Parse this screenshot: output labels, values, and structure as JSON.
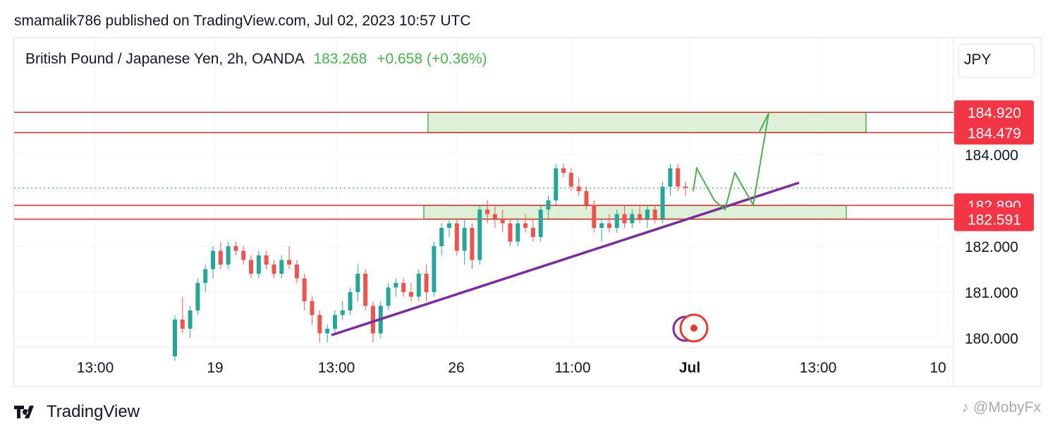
{
  "header": {
    "published_text": "smamalik786 published on TradingView.com, Jul 02, 2023 10:57 UTC"
  },
  "symbol": {
    "name": "British Pound / Japanese Yen, 2h, OANDA",
    "price": "183.268",
    "change": "+0.658 (+0.36%)"
  },
  "currency_button": "JPY",
  "footer": {
    "brand": "TradingView",
    "watermark": "@MobyFx"
  },
  "colors": {
    "up": "#26a69a",
    "down": "#ef5350",
    "level_line": "#d32f2f",
    "level_label_bg": "#f23645",
    "zone_fill": "#dff0d8",
    "zone_border": "#4caf50",
    "trendline": "#7b2d9b",
    "projection": "#4caf50",
    "grid": "#f0f3fa"
  },
  "chart_data": {
    "type": "candlestick",
    "instrument": "GBPJPY",
    "timeframe": "2h",
    "y_axis": {
      "ticks": [
        184.0,
        182.0,
        181.0,
        180.0
      ],
      "tick_labels": [
        "184.000",
        "182.000",
        "181.000",
        "180.000"
      ],
      "range": [
        179.8,
        185.5
      ]
    },
    "x_axis": {
      "tick_labels": [
        "13:00",
        "19",
        "13:00",
        "26",
        "11:00",
        "Jul",
        "13:00",
        "10"
      ]
    },
    "current_price": 183.268,
    "levels": [
      {
        "value": 184.92,
        "label": "184.920"
      },
      {
        "value": 184.479,
        "label": "184.479"
      },
      {
        "value": 182.89,
        "label": "182.890"
      },
      {
        "value": 182.591,
        "label": "182.591"
      }
    ],
    "zones": [
      {
        "from_date": "2023-06-26",
        "to_date": "2023-07-04",
        "low": 184.479,
        "high": 184.92
      },
      {
        "from_date": "2023-06-26",
        "to_date": "2023-07-04",
        "low": 182.591,
        "high": 182.89
      }
    ],
    "trendline": {
      "from": [
        "2023-06-21",
        180.1
      ],
      "to": [
        "2023-07-03",
        183.4
      ]
    },
    "projection_path": [
      183.2,
      183.7,
      183.0,
      182.8,
      183.6,
      182.9,
      184.9,
      184.5
    ],
    "candles": [
      [
        179.6,
        180.5,
        179.5,
        180.4
      ],
      [
        180.4,
        180.9,
        180.1,
        180.2
      ],
      [
        180.2,
        180.7,
        180.0,
        180.6
      ],
      [
        180.6,
        181.3,
        180.5,
        181.2
      ],
      [
        181.2,
        181.6,
        181.0,
        181.5
      ],
      [
        181.5,
        182.0,
        181.3,
        181.9
      ],
      [
        181.9,
        182.1,
        181.5,
        181.6
      ],
      [
        181.6,
        182.1,
        181.5,
        182.0
      ],
      [
        182.0,
        182.1,
        181.8,
        181.9
      ],
      [
        181.9,
        182.0,
        181.6,
        181.7
      ],
      [
        181.7,
        181.8,
        181.3,
        181.4
      ],
      [
        181.4,
        181.9,
        181.3,
        181.8
      ],
      [
        181.8,
        181.9,
        181.5,
        181.6
      ],
      [
        181.6,
        181.7,
        181.3,
        181.4
      ],
      [
        181.4,
        181.8,
        181.3,
        181.7
      ],
      [
        181.7,
        182.0,
        181.5,
        181.6
      ],
      [
        181.6,
        181.7,
        181.2,
        181.3
      ],
      [
        181.3,
        181.4,
        180.6,
        180.8
      ],
      [
        180.8,
        180.9,
        180.3,
        180.5
      ],
      [
        180.5,
        180.6,
        179.9,
        180.1
      ],
      [
        180.1,
        180.3,
        179.9,
        180.2
      ],
      [
        180.2,
        180.6,
        180.1,
        180.5
      ],
      [
        180.5,
        180.8,
        180.4,
        180.6
      ],
      [
        180.6,
        181.1,
        180.5,
        181.0
      ],
      [
        181.0,
        181.6,
        180.8,
        181.4
      ],
      [
        181.4,
        181.5,
        180.6,
        180.7
      ],
      [
        180.7,
        180.8,
        179.9,
        180.1
      ],
      [
        180.1,
        180.8,
        180.0,
        180.7
      ],
      [
        180.7,
        181.2,
        180.6,
        181.1
      ],
      [
        181.1,
        181.3,
        180.9,
        181.2
      ],
      [
        181.2,
        181.3,
        180.9,
        181.0
      ],
      [
        181.0,
        181.2,
        180.8,
        180.9
      ],
      [
        180.9,
        181.5,
        180.8,
        181.4
      ],
      [
        181.4,
        181.6,
        180.8,
        181.0
      ],
      [
        181.0,
        182.1,
        180.9,
        182.0
      ],
      [
        182.0,
        182.5,
        181.8,
        182.4
      ],
      [
        182.4,
        182.6,
        182.2,
        182.5
      ],
      [
        182.5,
        182.6,
        181.8,
        181.9
      ],
      [
        181.9,
        182.6,
        181.6,
        182.4
      ],
      [
        182.4,
        182.5,
        181.5,
        181.7
      ],
      [
        181.7,
        182.9,
        181.6,
        182.8
      ],
      [
        182.8,
        183.0,
        182.5,
        182.7
      ],
      [
        182.7,
        182.9,
        182.4,
        182.6
      ],
      [
        182.6,
        182.8,
        182.3,
        182.5
      ],
      [
        182.5,
        182.6,
        182.0,
        182.1
      ],
      [
        182.1,
        182.6,
        182.0,
        182.5
      ],
      [
        182.5,
        182.7,
        182.3,
        182.4
      ],
      [
        182.4,
        182.6,
        182.1,
        182.2
      ],
      [
        182.2,
        182.9,
        182.1,
        182.8
      ],
      [
        182.8,
        183.1,
        182.6,
        183.0
      ],
      [
        183.0,
        183.8,
        182.9,
        183.7
      ],
      [
        183.7,
        183.8,
        183.5,
        183.6
      ],
      [
        183.6,
        183.7,
        183.2,
        183.3
      ],
      [
        183.3,
        183.5,
        183.1,
        183.2
      ],
      [
        183.2,
        183.3,
        182.8,
        182.9
      ],
      [
        182.9,
        183.0,
        182.3,
        182.4
      ],
      [
        182.4,
        182.6,
        182.1,
        182.5
      ],
      [
        182.5,
        182.7,
        182.3,
        182.4
      ],
      [
        182.4,
        182.8,
        182.3,
        182.7
      ],
      [
        182.7,
        182.9,
        182.4,
        182.5
      ],
      [
        182.5,
        182.8,
        182.4,
        182.7
      ],
      [
        182.7,
        182.9,
        182.5,
        182.6
      ],
      [
        182.6,
        182.9,
        182.4,
        182.8
      ],
      [
        182.8,
        182.9,
        182.5,
        182.6
      ],
      [
        182.6,
        183.4,
        182.5,
        183.3
      ],
      [
        183.3,
        183.8,
        183.1,
        183.7
      ],
      [
        183.7,
        183.8,
        183.2,
        183.3
      ],
      [
        183.3,
        183.4,
        183.1,
        183.27
      ]
    ]
  }
}
